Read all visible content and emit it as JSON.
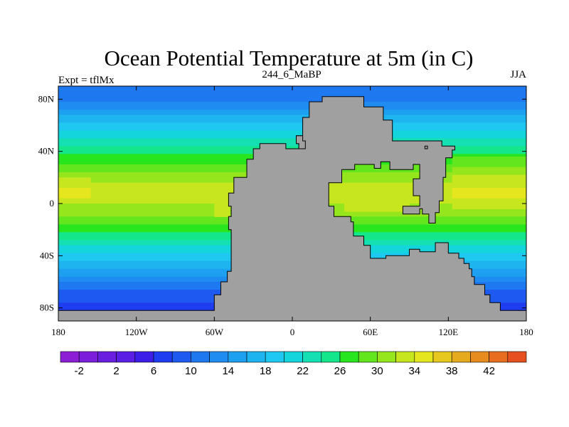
{
  "chart_data": {
    "type": "heatmap",
    "title": "Ocean Potential Temperature at 5m (in C)",
    "subtitle_left": "Expt = tflMx",
    "subtitle_center": "244_6_MaBP",
    "subtitle_right": "JJA",
    "xlim": [
      -180,
      180
    ],
    "ylim": [
      -90,
      90
    ],
    "x_ticks": [
      {
        "value": -180,
        "label": "180"
      },
      {
        "value": -120,
        "label": "120W"
      },
      {
        "value": -60,
        "label": "60W"
      },
      {
        "value": 0,
        "label": "0"
      },
      {
        "value": 60,
        "label": "60E"
      },
      {
        "value": 120,
        "label": "120E"
      },
      {
        "value": 180,
        "label": "180"
      }
    ],
    "y_ticks": [
      {
        "value": 80,
        "label": "80N"
      },
      {
        "value": 40,
        "label": "40N"
      },
      {
        "value": 0,
        "label": "0"
      },
      {
        "value": -40,
        "label": "40S"
      },
      {
        "value": -80,
        "label": "80S"
      }
    ],
    "land_color": "#a0a0a0",
    "colorbar": {
      "min": -4,
      "max": 44,
      "step": 2,
      "labels": [
        "-2",
        "2",
        "6",
        "10",
        "14",
        "18",
        "22",
        "26",
        "30",
        "34",
        "38",
        "42"
      ],
      "label_values": [
        -2,
        2,
        6,
        10,
        14,
        18,
        22,
        26,
        30,
        34,
        38,
        42
      ],
      "colors": [
        "#8c1ed6",
        "#7a1edc",
        "#6a1ee0",
        "#5a1ee4",
        "#3d1ee8",
        "#1e3cf0",
        "#1e5af0",
        "#1e78f0",
        "#1e8cf0",
        "#1ea0f0",
        "#1eb4f0",
        "#1ec8f0",
        "#14d4dc",
        "#14e0b4",
        "#14e68c",
        "#28e61e",
        "#64e61e",
        "#96e61e",
        "#c8e61e",
        "#e6e61e",
        "#e6c81e",
        "#e6aa1e",
        "#e68c1e",
        "#e66e1e",
        "#e6501e"
      ]
    },
    "zonal_mean_temperature": [
      {
        "lat": 90,
        "value": 12
      },
      {
        "lat": 80,
        "value": 11.5
      },
      {
        "lat": 70,
        "value": 15
      },
      {
        "lat": 60,
        "value": 18.5
      },
      {
        "lat": 50,
        "value": 22
      },
      {
        "lat": 40,
        "value": 25.5
      },
      {
        "lat": 30,
        "value": 28
      },
      {
        "lat": 20,
        "value": 31
      },
      {
        "lat": 10,
        "value": 33
      },
      {
        "lat": 0,
        "value": 32
      },
      {
        "lat": -10,
        "value": 30
      },
      {
        "lat": -20,
        "value": 27
      },
      {
        "lat": -30,
        "value": 23
      },
      {
        "lat": -40,
        "value": 19.5
      },
      {
        "lat": -50,
        "value": 16
      },
      {
        "lat": -60,
        "value": 12
      },
      {
        "lat": -70,
        "value": 9
      },
      {
        "lat": -80,
        "value": 7
      },
      {
        "lat": -90,
        "value": 6
      }
    ],
    "land_polygons": [
      [
        [
          -150,
          -82
        ],
        [
          -60,
          -82
        ],
        [
          -60,
          -70
        ],
        [
          -55,
          -70
        ],
        [
          -55,
          -60
        ],
        [
          -50,
          -60
        ],
        [
          -50,
          -52
        ],
        [
          -47,
          -52
        ],
        [
          -47,
          -30
        ],
        [
          -47,
          -20
        ],
        [
          -49,
          -20
        ],
        [
          -49,
          -10
        ],
        [
          -47,
          -10
        ],
        [
          -47,
          -2
        ],
        [
          -49,
          -2
        ],
        [
          -49,
          8
        ],
        [
          -45,
          8
        ],
        [
          -45,
          20
        ],
        [
          -35,
          20
        ],
        [
          -35,
          34
        ],
        [
          -30,
          34
        ],
        [
          -30,
          42
        ],
        [
          -25,
          42
        ],
        [
          -25,
          46
        ],
        [
          -5,
          46
        ],
        [
          -5,
          42
        ],
        [
          5,
          42
        ],
        [
          5,
          46
        ],
        [
          3,
          46
        ],
        [
          3,
          52
        ],
        [
          8,
          52
        ],
        [
          8,
          66
        ],
        [
          13,
          66
        ],
        [
          13,
          78
        ],
        [
          23,
          78
        ],
        [
          23,
          82
        ],
        [
          55,
          82
        ],
        [
          55,
          74
        ],
        [
          70,
          74
        ],
        [
          70,
          64
        ],
        [
          77,
          64
        ],
        [
          77,
          48
        ],
        [
          115,
          48
        ],
        [
          115,
          44
        ],
        [
          125,
          44
        ],
        [
          125,
          41
        ],
        [
          123,
          41
        ],
        [
          123,
          35
        ],
        [
          118,
          35
        ],
        [
          118,
          20
        ],
        [
          116,
          20
        ],
        [
          116,
          2
        ],
        [
          113,
          2
        ],
        [
          113,
          -7
        ],
        [
          110,
          -7
        ],
        [
          110,
          -15
        ],
        [
          105,
          -15
        ],
        [
          105,
          -8
        ],
        [
          100,
          -8
        ],
        [
          100,
          -4
        ],
        [
          98,
          -4
        ],
        [
          98,
          -8
        ],
        [
          85,
          -8
        ],
        [
          85,
          -2
        ],
        [
          98,
          -2
        ],
        [
          98,
          6
        ],
        [
          93,
          6
        ],
        [
          93,
          19
        ],
        [
          98,
          19
        ],
        [
          98,
          30
        ],
        [
          93,
          30
        ],
        [
          93,
          26
        ],
        [
          75,
          26
        ],
        [
          75,
          32
        ],
        [
          68,
          32
        ],
        [
          68,
          27
        ],
        [
          63,
          27
        ],
        [
          63,
          30
        ],
        [
          48,
          30
        ],
        [
          48,
          26
        ],
        [
          38,
          26
        ],
        [
          38,
          16
        ],
        [
          28,
          16
        ],
        [
          28,
          -2
        ],
        [
          32,
          -2
        ],
        [
          32,
          -10
        ],
        [
          45,
          -10
        ],
        [
          45,
          -14
        ],
        [
          47,
          -14
        ],
        [
          47,
          -25
        ],
        [
          55,
          -25
        ],
        [
          55,
          -32
        ],
        [
          60,
          -32
        ],
        [
          60,
          -42
        ],
        [
          72,
          -42
        ],
        [
          72,
          -40
        ],
        [
          90,
          -40
        ],
        [
          90,
          -35
        ],
        [
          98,
          -35
        ],
        [
          98,
          -37
        ],
        [
          110,
          -37
        ],
        [
          110,
          -30
        ],
        [
          120,
          -30
        ],
        [
          120,
          -38
        ],
        [
          128,
          -38
        ],
        [
          128,
          -42
        ],
        [
          132,
          -42
        ],
        [
          132,
          -46
        ],
        [
          136,
          -46
        ],
        [
          136,
          -50
        ],
        [
          138,
          -50
        ],
        [
          138,
          -56
        ],
        [
          140,
          -56
        ],
        [
          140,
          -62
        ],
        [
          148,
          -62
        ],
        [
          148,
          -70
        ],
        [
          152,
          -70
        ],
        [
          152,
          -76
        ],
        [
          160,
          -76
        ],
        [
          160,
          -82
        ],
        [
          180,
          -82
        ],
        [
          180,
          -90
        ],
        [
          -180,
          -90
        ],
        [
          -180,
          -82
        ],
        [
          -150,
          -82
        ]
      ],
      [
        [
          5,
          42
        ],
        [
          5,
          46
        ],
        [
          3,
          46
        ],
        [
          3,
          52
        ],
        [
          8,
          52
        ],
        [
          8,
          48
        ],
        [
          10,
          48
        ],
        [
          10,
          42
        ],
        [
          5,
          42
        ]
      ],
      [
        [
          102,
          44
        ],
        [
          104,
          44
        ],
        [
          104,
          42
        ],
        [
          102,
          42
        ],
        [
          102,
          44
        ]
      ]
    ]
  }
}
